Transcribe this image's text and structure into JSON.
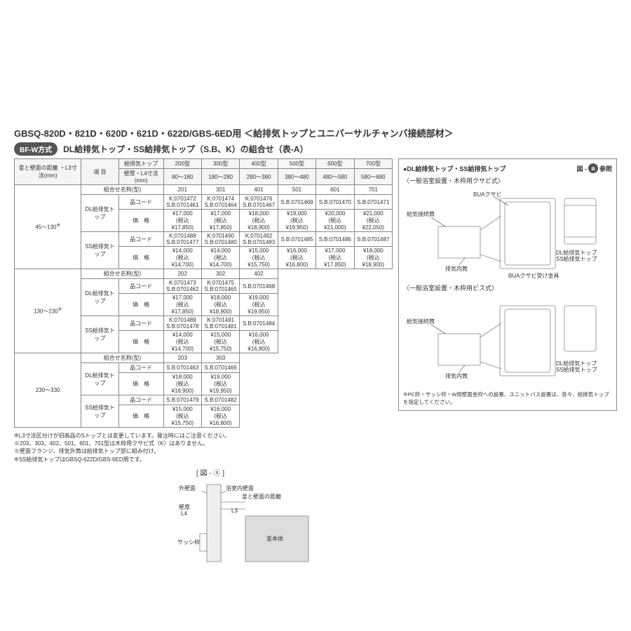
{
  "header": "GBSQ-820D・821D・620D・621D・622D/GBS-6ED用 ＜給排気トップとユニバーサルチャンバ接続部材＞",
  "badge": "BF-W方式",
  "section_title": "DL給排気トップ・SS給排気トップ（S.B、K）の組合せ（表-A）",
  "col_label1": "釜と壁面の距離\n・L3寸法(mm)",
  "col_label2": "項 目",
  "col_label3_a": "給排気トップ",
  "col_label3_b": "壁厚・L4寸法 (mm)",
  "models": [
    "200型",
    "300型",
    "400型",
    "500型",
    "600型",
    "700型"
  ],
  "ranges": [
    "80～180",
    "180～280",
    "280～380",
    "380～480",
    "480～580",
    "580～680"
  ],
  "row_labels": {
    "combo": "組合せ名称(型)",
    "dl": "DL給排気トップ",
    "ss": "SS給排気トップ",
    "code": "品コード",
    "price": "価　格"
  },
  "groups": [
    {
      "l3": "45～130",
      "sup": "※",
      "combo": [
        "201",
        "301",
        "401",
        "501",
        "601",
        "701"
      ],
      "dl_code": [
        "K:0701472\nS.B:0701461",
        "K:0701474\nS.B:0701464",
        "K:0701476\nS.B:0701467",
        "S.B:0701469",
        "S.B:0701470",
        "S.B:0701471"
      ],
      "dl_price": [
        "¥17,000\n(税込¥17,850)",
        "¥17,000\n(税込¥17,850)",
        "¥18,000\n(税込¥18,900)",
        "¥19,000\n(税込¥19,950)",
        "¥20,000\n(税込¥21,000)",
        "¥21,000\n(税込¥22,050)"
      ],
      "ss_code": [
        "K:0701488\nS.B:0701477",
        "K:0701490\nS.B:0701480",
        "K:0701492\nS.B:0701483",
        "S.B:0701485",
        "S.B:0701486",
        "S.B:0701487"
      ],
      "ss_price": [
        "¥14,000\n(税込¥14,700)",
        "¥14,000\n(税込¥14,700)",
        "¥15,000\n(税込¥15,750)",
        "¥16,000\n(税込¥16,800)",
        "¥17,000\n(税込¥17,850)",
        "¥18,000\n(税込¥18,900)"
      ]
    },
    {
      "l3": "130～230",
      "sup": "※",
      "cols": 3,
      "combo": [
        "202",
        "302",
        "402"
      ],
      "dl_code": [
        "K:0701473\nS.B:0701462",
        "K:0701475\nS.B:0701465",
        "S.B:0701468"
      ],
      "dl_price": [
        "¥17,000\n(税込¥17,850)",
        "¥18,000\n(税込¥18,900)",
        "¥19,000\n(税込¥19,950)"
      ],
      "ss_code": [
        "K:0701489\nS.B:0701478",
        "K:0701491\nS.B:0701481",
        "S.B:0701484"
      ],
      "ss_price": [
        "¥14,000\n(税込¥14,700)",
        "¥15,000\n(税込¥15,750)",
        "¥16,000\n(税込¥16,800)"
      ]
    },
    {
      "l3": "230～330",
      "cols": 2,
      "combo": [
        "203",
        "303"
      ],
      "dl_code": [
        "S.B:0701463",
        "S.B:0701466"
      ],
      "dl_price": [
        "¥18,000\n(税込¥18,900)",
        "¥19,000\n(税込¥19,950)"
      ],
      "ss_code": [
        "S.B:0701479",
        "S.B:0701482"
      ],
      "ss_price": [
        "¥15,000\n(税込¥15,750)",
        "¥16,000\n(税込¥16,800)"
      ]
    }
  ],
  "notes": [
    "L3寸法区分けが旧商品のSトップとは変更しています。発注時にはご注意ください。",
    "203、303、402、501、601、701型は木枠用クサビ式（K）はありません。",
    "壁面フランジ、排気外筒は給排気トップ部に組み付け。",
    "SS給排気トップはGBSQ-622D/GBS-6ED用です。"
  ],
  "fig_label": "[ 図 - ⓐ ]",
  "fig_a": "a",
  "fig_a_text": "参照",
  "fig_prefix": "図 -",
  "right_title": "●DL給排気トップ・SS給排気トップ",
  "right_sub1": "〈一般浴室設置・木枠用クサビ式〉",
  "right_sub2": "〈一般浴室設置・木枠用ビス式〉",
  "right_note": "PC枠・サッシ枠・W用壁面金枠への設置、ユニットバス設置は、各々、給排気トップを指定してください。",
  "annot": {
    "kyuki": "給気接続筒",
    "kusabi": "BUAクサビ",
    "dlss": "DL給排気トップ\nSS給排気トップ",
    "ukekanagu": "BUAクサビ受け金具",
    "haiki": "排気内筒",
    "gaiheki": "外壁面",
    "shitsunai": "浴室内壁面",
    "hekiatsu": "壁厚\nL4",
    "kamakabe": "釜と壁面の距離",
    "l3": "L3",
    "sash": "サッシ枠",
    "hon": "釜本体"
  }
}
